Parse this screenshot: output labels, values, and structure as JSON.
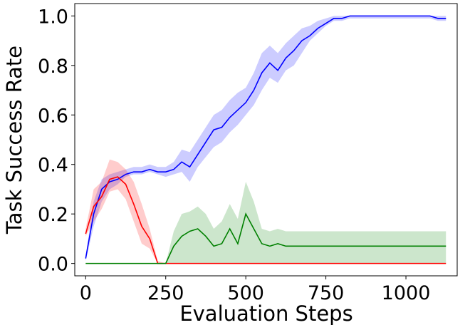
{
  "chart_data": {
    "type": "line",
    "x_label": "Evaluation Steps",
    "y_label": "Task Success Rate",
    "x": [
      0,
      25,
      50,
      75,
      100,
      125,
      150,
      175,
      200,
      225,
      250,
      275,
      300,
      325,
      350,
      375,
      400,
      425,
      450,
      475,
      500,
      525,
      550,
      575,
      600,
      625,
      650,
      675,
      700,
      725,
      750,
      775,
      800,
      825,
      850,
      875,
      900,
      925,
      950,
      975,
      1000,
      1025,
      1050,
      1075,
      1100,
      1125
    ],
    "series": [
      {
        "color": "#0000ff",
        "values": [
          0.02,
          0.2,
          0.3,
          0.33,
          0.34,
          0.36,
          0.37,
          0.37,
          0.38,
          0.37,
          0.37,
          0.38,
          0.41,
          0.39,
          0.44,
          0.49,
          0.54,
          0.55,
          0.59,
          0.62,
          0.65,
          0.7,
          0.77,
          0.81,
          0.78,
          0.83,
          0.86,
          0.9,
          0.92,
          0.95,
          0.97,
          0.99,
          0.99,
          1,
          1,
          1,
          1,
          1,
          1,
          1,
          1,
          1,
          1,
          1,
          0.99,
          0.99
        ],
        "lower": [
          0.01,
          0.15,
          0.25,
          0.3,
          0.32,
          0.35,
          0.36,
          0.36,
          0.37,
          0.36,
          0.35,
          0.36,
          0.37,
          0.33,
          0.39,
          0.43,
          0.47,
          0.49,
          0.53,
          0.56,
          0.6,
          0.64,
          0.7,
          0.75,
          0.73,
          0.78,
          0.8,
          0.85,
          0.9,
          0.93,
          0.96,
          0.98,
          0.98,
          0.99,
          0.99,
          0.99,
          0.99,
          0.99,
          0.99,
          0.99,
          0.99,
          0.99,
          0.99,
          0.99,
          0.98,
          0.98
        ],
        "upper": [
          0.03,
          0.25,
          0.34,
          0.36,
          0.37,
          0.38,
          0.39,
          0.39,
          0.4,
          0.39,
          0.39,
          0.41,
          0.46,
          0.45,
          0.5,
          0.55,
          0.6,
          0.62,
          0.66,
          0.69,
          0.71,
          0.77,
          0.85,
          0.88,
          0.85,
          0.89,
          0.92,
          0.95,
          0.96,
          0.98,
          0.99,
          1,
          1,
          1,
          1,
          1,
          1,
          1,
          1,
          1,
          1,
          1,
          1,
          1,
          1,
          1
        ]
      },
      {
        "color": "#ff0000",
        "values": [
          0.12,
          0.23,
          0.27,
          0.34,
          0.35,
          0.32,
          0.24,
          0.15,
          0.1,
          0,
          0,
          0,
          0,
          0,
          0,
          0,
          0,
          0,
          0,
          0,
          0,
          0,
          0,
          0,
          0,
          0,
          0,
          0,
          0,
          0,
          0,
          0,
          0,
          0,
          0,
          0,
          0,
          0,
          0,
          0,
          0,
          0,
          0,
          0,
          0,
          0
        ],
        "lower": [
          0.11,
          0.17,
          0.22,
          0.29,
          0.3,
          0.26,
          0.17,
          0.08,
          0.06,
          0,
          0,
          0,
          0,
          0,
          0,
          0,
          0,
          0,
          0,
          0,
          0,
          0,
          0,
          0,
          0,
          0,
          0,
          0,
          0,
          0,
          0,
          0,
          0,
          0,
          0,
          0,
          0,
          0,
          0,
          0,
          0,
          0,
          0,
          0,
          0,
          0
        ],
        "upper": [
          0.14,
          0.3,
          0.33,
          0.42,
          0.41,
          0.38,
          0.33,
          0.24,
          0.14,
          0.01,
          0,
          0,
          0,
          0,
          0,
          0,
          0,
          0,
          0,
          0,
          0,
          0,
          0,
          0,
          0,
          0,
          0,
          0,
          0,
          0,
          0,
          0,
          0,
          0,
          0,
          0,
          0,
          0,
          0,
          0,
          0,
          0,
          0,
          0,
          0,
          0
        ]
      },
      {
        "color": "#008000",
        "values": [
          0,
          0,
          0,
          0,
          0,
          0,
          0,
          0,
          0,
          0,
          0,
          0.07,
          0.11,
          0.13,
          0.14,
          0.11,
          0.07,
          0.08,
          0.14,
          0.08,
          0.2,
          0.14,
          0.08,
          0.07,
          0.08,
          0.07,
          0.07,
          0.07,
          0.07,
          0.07,
          0.07,
          0.07,
          0.07,
          0.07,
          0.07,
          0.07,
          0.07,
          0.07,
          0.07,
          0.07,
          0.07,
          0.07,
          0.07,
          0.07,
          0.07,
          0.07
        ],
        "lower": [
          0,
          0,
          0,
          0,
          0,
          0,
          0,
          0,
          0,
          0,
          0,
          0,
          0,
          0,
          0,
          0,
          0,
          0,
          0,
          0,
          0,
          0,
          0,
          0,
          0,
          0,
          0,
          0,
          0,
          0,
          0,
          0,
          0,
          0,
          0,
          0,
          0,
          0,
          0,
          0,
          0,
          0,
          0,
          0,
          0,
          0
        ],
        "upper": [
          0,
          0,
          0,
          0,
          0,
          0,
          0,
          0,
          0,
          0,
          0,
          0.13,
          0.2,
          0.21,
          0.23,
          0.2,
          0.14,
          0.17,
          0.24,
          0.18,
          0.33,
          0.25,
          0.14,
          0.13,
          0.14,
          0.13,
          0.13,
          0.13,
          0.13,
          0.13,
          0.13,
          0.13,
          0.13,
          0.13,
          0.13,
          0.13,
          0.13,
          0.13,
          0.13,
          0.13,
          0.13,
          0.13,
          0.13,
          0.13,
          0.13,
          0.13
        ]
      }
    ],
    "xlim": [
      -34,
      1160
    ],
    "ylim": [
      -0.05,
      1.05
    ],
    "xticks": [
      0,
      250,
      500,
      750,
      1000
    ],
    "yticks": [
      {
        "value": 0,
        "label": "0.0"
      },
      0.2,
      0.4,
      0.6,
      0.8,
      {
        "value": 1,
        "label": "1.0"
      }
    ]
  }
}
